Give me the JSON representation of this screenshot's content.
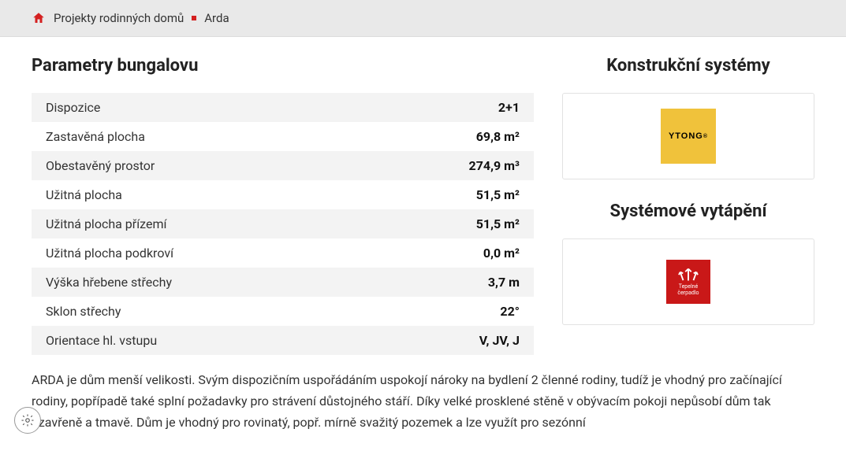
{
  "breadcrumb": {
    "item1": "Projekty rodinných domů",
    "item2": "Arda"
  },
  "left_title": "Parametry bungalovu",
  "params": [
    {
      "label": "Dispozice",
      "value": "2+1"
    },
    {
      "label": "Zastavěná plocha",
      "value": "69,8 m²"
    },
    {
      "label": "Obestavěný prostor",
      "value": "274,9 m³"
    },
    {
      "label": "Užitná plocha",
      "value": "51,5 m²"
    },
    {
      "label": "Užitná plocha přízemí",
      "value": "51,5 m²"
    },
    {
      "label": "Užitná plocha podkroví",
      "value": "0,0 m²"
    },
    {
      "label": "Výška hřebene střechy",
      "value": "3,7 m"
    },
    {
      "label": "Sklon střechy",
      "value": "22°"
    },
    {
      "label": "Orientace hl. vstupu",
      "value": "V, JV, J"
    }
  ],
  "right": {
    "systems_title": "Konstrukční systémy",
    "heating_title": "Systémové vytápění",
    "ytong_label": "YTONG",
    "heat_label1": "Tepelné",
    "heat_label2": "čerpadlo"
  },
  "description": "ARDA je dům menší velikosti. Svým dispozičním uspořádáním uspokojí nároky na bydlení 2 členné rodiny, tudíž je vhodný pro začínající rodiny, popřípadě také splní požadavky pro strávení důstojného stáří. Díky velké prosklené stěně v obývacím pokoji nepůsobí dům tak uzavřeně a tmavě. Dům je vhodný pro rovinatý, popř. mírně svažitý pozemek a lze využít pro sezónní",
  "colors": {
    "accent_red": "#d42020",
    "ytong_bg": "#f0c23b",
    "heat_bg": "#c91818",
    "row_alt": "#f3f3f3",
    "breadcrumb_bg": "#e9e9e9"
  }
}
